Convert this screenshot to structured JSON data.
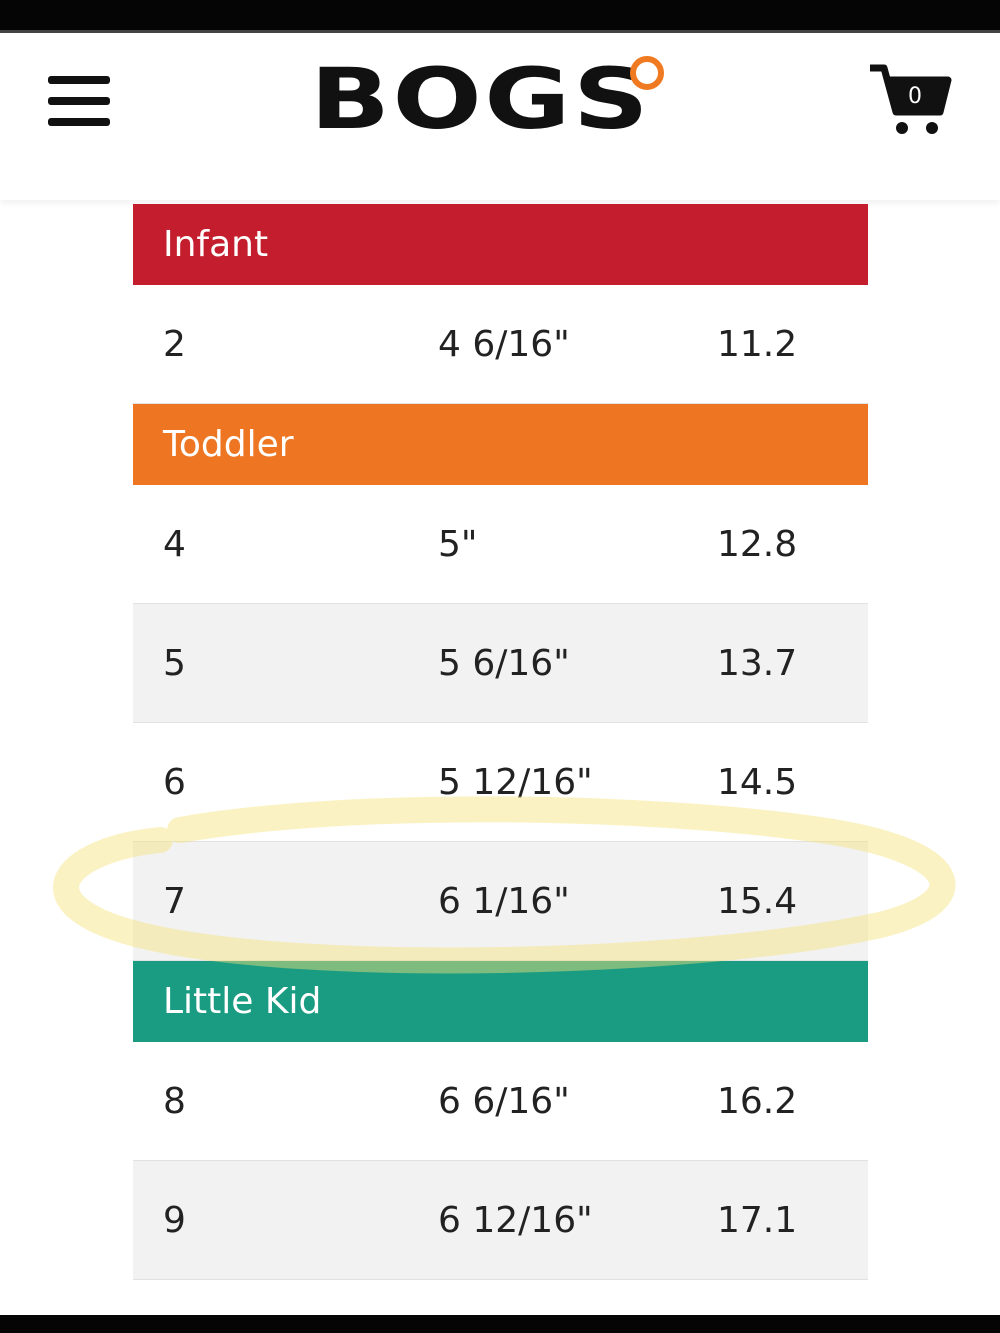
{
  "header": {
    "logo": "BOGS",
    "cart_count": "0"
  },
  "table": {
    "sections": [
      {
        "title": "Infant",
        "color": "#c41e2e",
        "rows": [
          [
            "2",
            "4 6/16\"",
            "11.2"
          ]
        ]
      },
      {
        "title": "Toddler",
        "color": "#ee7623",
        "rows": [
          [
            "4",
            "5\"",
            "12.8"
          ],
          [
            "5",
            "5 6/16\"",
            "13.7"
          ],
          [
            "6",
            "5 12/16\"",
            "14.5"
          ],
          [
            "7",
            "6 1/16\"",
            "15.4"
          ]
        ]
      },
      {
        "title": "Little Kid",
        "color": "#1a9c82",
        "rows": [
          [
            "8",
            "6 6/16\"",
            "16.2"
          ],
          [
            "9",
            "6 12/16\"",
            "17.1"
          ]
        ]
      }
    ]
  }
}
